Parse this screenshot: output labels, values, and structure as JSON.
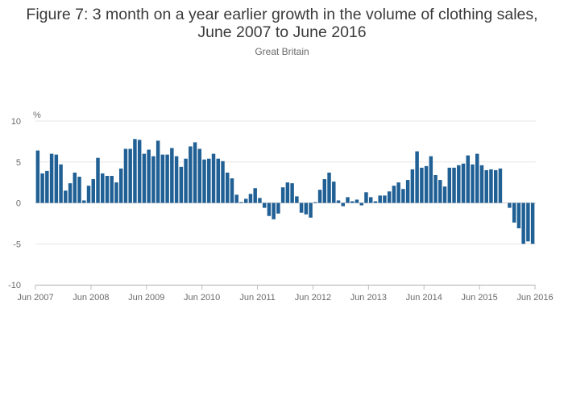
{
  "chart_data": {
    "type": "bar",
    "title_line1": "Figure 7: 3 month on a year earlier growth in the volume of clothing sales,",
    "title_line2": "June 2007 to June 2016",
    "subtitle": "Great Britain",
    "ylabel": "%",
    "ylim": [
      -10,
      10
    ],
    "yticks": [
      10,
      5,
      0,
      -5,
      -10
    ],
    "xticks": [
      "Jun 2007",
      "Jun 2008",
      "Jun 2009",
      "Jun 2010",
      "Jun 2011",
      "Jun 2012",
      "Jun 2013",
      "Jun 2014",
      "Jun 2015",
      "Jun 2016"
    ],
    "grid": true,
    "bar_color": "#206095",
    "grid_color": "#e6e6e6",
    "values": [
      6.4,
      3.6,
      3.9,
      6.0,
      5.9,
      4.7,
      1.5,
      2.4,
      3.7,
      3.2,
      0.3,
      2.1,
      2.9,
      5.5,
      3.6,
      3.3,
      3.3,
      2.5,
      4.2,
      6.6,
      6.6,
      7.8,
      7.7,
      6.0,
      6.5,
      5.7,
      7.6,
      5.9,
      5.9,
      6.7,
      5.7,
      4.4,
      5.4,
      6.9,
      7.4,
      6.6,
      5.3,
      5.4,
      6.0,
      5.4,
      5.1,
      3.7,
      3.0,
      1.0,
      0.1,
      0.5,
      1.1,
      1.8,
      0.6,
      -0.6,
      -1.6,
      -2.0,
      -1.3,
      1.9,
      2.5,
      2.4,
      0.8,
      -1.2,
      -1.4,
      -1.8,
      0.1,
      1.6,
      2.9,
      3.7,
      2.6,
      0.3,
      -0.4,
      0.7,
      0.2,
      0.4,
      -0.3,
      1.3,
      0.7,
      0.2,
      0.9,
      0.9,
      1.4,
      2.1,
      2.5,
      1.7,
      2.8,
      4.1,
      6.3,
      4.3,
      4.5,
      5.7,
      3.4,
      2.8,
      2.0,
      4.3,
      4.3,
      4.6,
      4.8,
      5.8,
      4.7,
      6.0,
      4.6,
      4.0,
      4.1,
      4.0,
      4.2,
      0.0,
      -0.6,
      -2.4,
      -3.1,
      -5.0,
      -4.7,
      -5.0
    ]
  }
}
